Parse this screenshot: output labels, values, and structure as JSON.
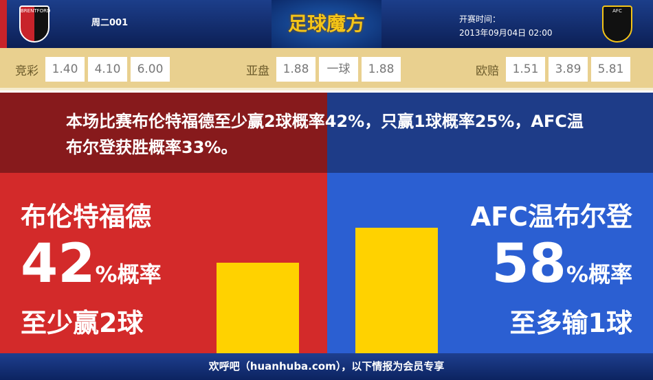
{
  "header": {
    "match_id": "周二001",
    "brand": "足球魔方",
    "kickoff_label": "开赛时间：",
    "kickoff_time": "2013年09月04日 02:00",
    "home_crest_text": "BRENTFORD",
    "away_crest_text": "AFC"
  },
  "odds": {
    "jingcai": {
      "label": "竞彩",
      "values": [
        "1.40",
        "4.10",
        "6.00"
      ]
    },
    "yapan": {
      "label": "亚盘",
      "values": [
        "1.88",
        "一球",
        "1.88"
      ]
    },
    "oupei": {
      "label": "欧赔",
      "values": [
        "1.51",
        "3.89",
        "5.81"
      ]
    }
  },
  "summary": "本场比赛布伦特福德至少赢2球概率42%，只赢1球概率25%，AFC温布尔登获胜概率33%。",
  "home": {
    "name": "布伦特福德",
    "pct": "42",
    "pct_suffix": "%概率",
    "note": "至少赢2球",
    "bar_value": 42
  },
  "away": {
    "name": "AFC温布尔登",
    "pct": "58",
    "pct_suffix": "%概率",
    "note": "至多输1球",
    "bar_value": 58
  },
  "footer": "欢呼吧（huanhuba.com），以下情报为会员专享",
  "colors": {
    "home": "#d32a2a",
    "away": "#2b5fd2",
    "bar": "#ffd200",
    "odds_bg": "#e9d08f"
  }
}
